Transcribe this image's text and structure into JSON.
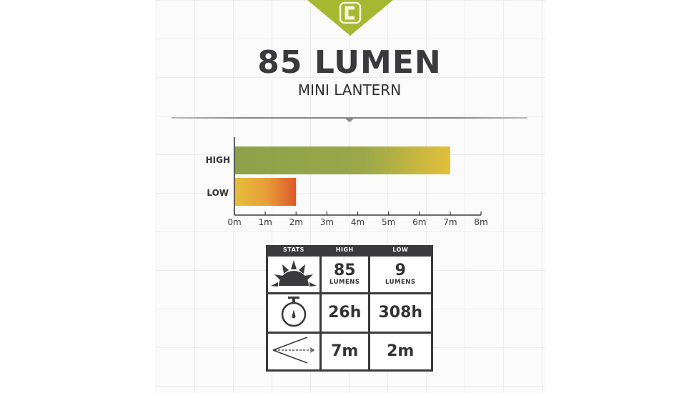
{
  "logo": {
    "letter": "C",
    "color": "#a6b832"
  },
  "header": {
    "title": "85 LUMEN",
    "subtitle": "MINI LANTERN"
  },
  "chart_data": {
    "type": "bar",
    "orientation": "horizontal",
    "categories": [
      "HIGH",
      "LOW"
    ],
    "values": [
      7,
      2
    ],
    "xlim": [
      0,
      8
    ],
    "xticks": [
      "0m",
      "1m",
      "2m",
      "3m",
      "4m",
      "5m",
      "6m",
      "7m",
      "8m"
    ],
    "grid": false,
    "colors": {
      "HIGH": [
        "#8ea04a",
        "#9aa84a",
        "#e2bf3a"
      ],
      "LOW": [
        "#e6bf3a",
        "#e8a03a",
        "#dc5a2a"
      ]
    }
  },
  "stats_table": {
    "headers": [
      "STATS",
      "HIGH",
      "LOW"
    ],
    "rows": [
      {
        "icon": "sun-icon",
        "high": "85",
        "high_unit": "LUMENS",
        "low": "9",
        "low_unit": "LUMENS"
      },
      {
        "icon": "stopwatch-icon",
        "high": "26h",
        "low": "308h"
      },
      {
        "icon": "beam-distance-icon",
        "high": "7m",
        "low": "2m"
      }
    ]
  }
}
